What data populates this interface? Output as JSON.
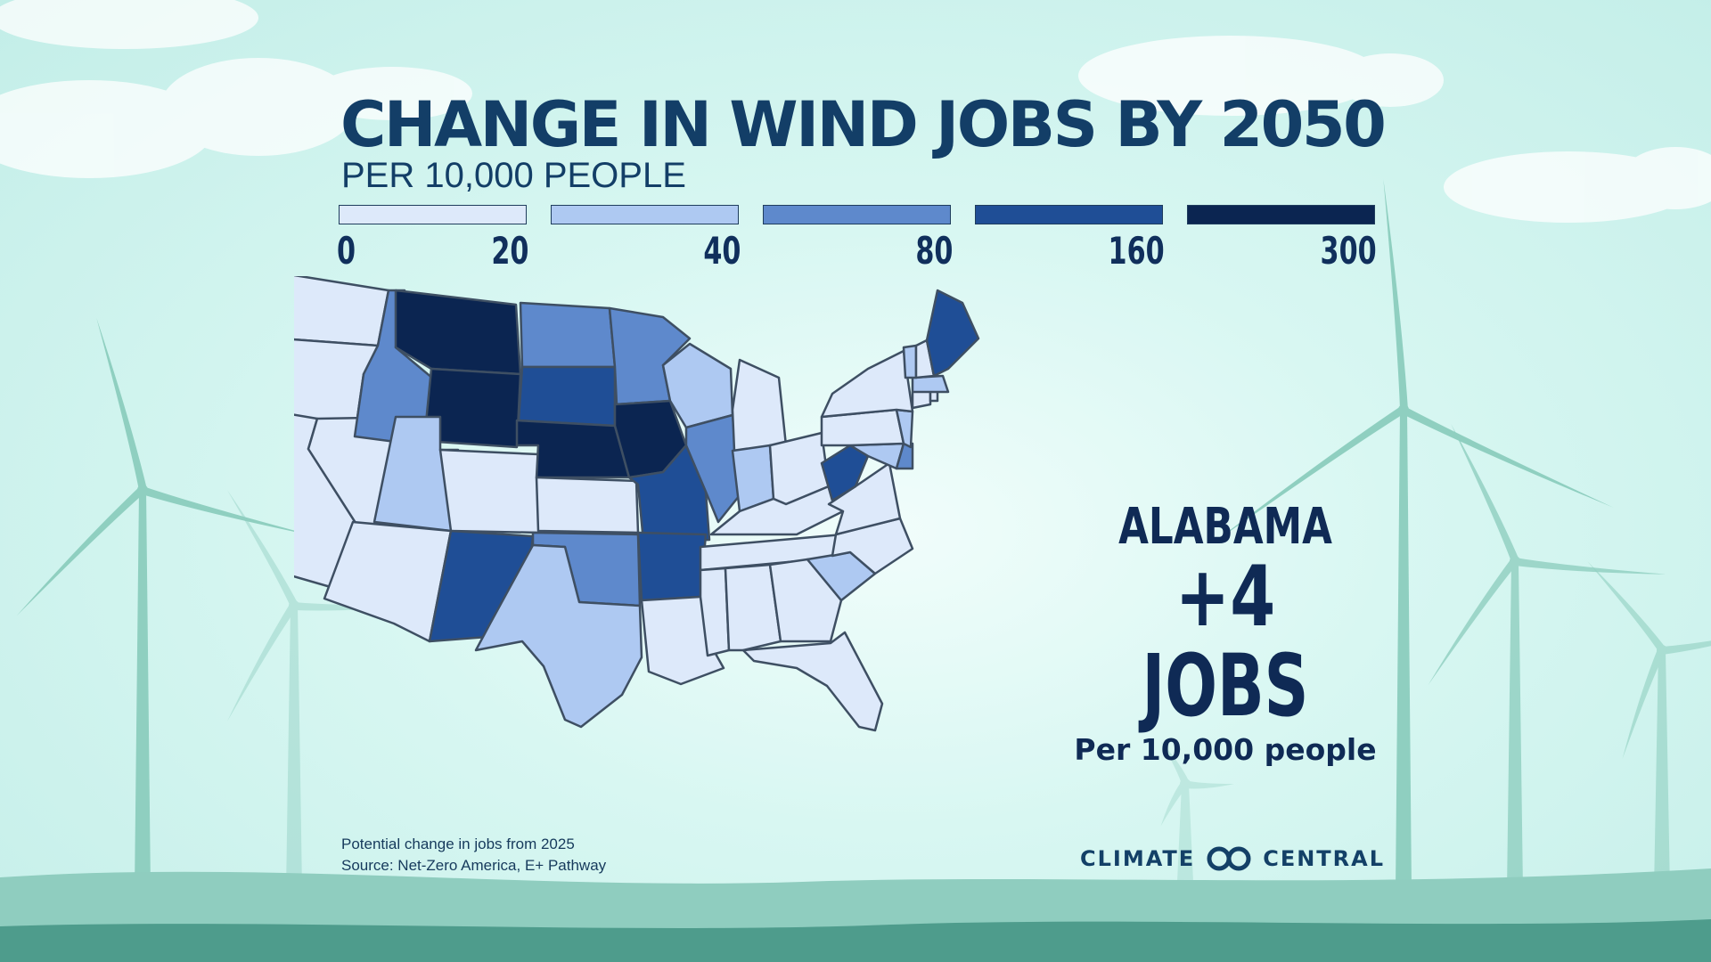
{
  "title": "CHANGE IN WIND JOBS BY 2050",
  "subtitle": "PER 10,000 PEOPLE",
  "colors": {
    "bin_0_20": "#dde9fa",
    "bin_20_40": "#aec9f2",
    "bin_40_80": "#5e89cc",
    "bin_80_160": "#1f4e96",
    "bin_160_300": "#0b2551",
    "state_border": "#3e4f63",
    "turbine": "#8fcfc0",
    "ground": "#4f9e8d"
  },
  "legend": [
    {
      "label": "0",
      "end_label": "20",
      "color": "#dde9fa"
    },
    {
      "label": "40",
      "color": "#aec9f2"
    },
    {
      "label": "80",
      "color": "#5e89cc"
    },
    {
      "label": "160",
      "color": "#1f4e96"
    },
    {
      "label": "300",
      "color": "#0b2551"
    }
  ],
  "callout": {
    "state": "ALABAMA",
    "value": "+4",
    "unit": "JOBS",
    "per": "Per 10,000 people"
  },
  "notes": {
    "line1": "Potential change in jobs from 2025",
    "line2": "Source: Net-Zero America, E+ Pathway"
  },
  "brand": {
    "left": "CLIMATE",
    "right": "CENTRAL",
    "icon": "climate-central-logo-icon"
  },
  "map": {
    "region": "United States (contiguous)",
    "states": [
      {
        "code": "WA",
        "bin": 0
      },
      {
        "code": "OR",
        "bin": 0
      },
      {
        "code": "CA",
        "bin": 0
      },
      {
        "code": "NV",
        "bin": 0
      },
      {
        "code": "ID",
        "bin": 2
      },
      {
        "code": "MT",
        "bin": 4
      },
      {
        "code": "WY",
        "bin": 4
      },
      {
        "code": "UT",
        "bin": 1
      },
      {
        "code": "AZ",
        "bin": 0
      },
      {
        "code": "CO",
        "bin": 0
      },
      {
        "code": "NM",
        "bin": 3
      },
      {
        "code": "ND",
        "bin": 2
      },
      {
        "code": "SD",
        "bin": 3
      },
      {
        "code": "NE",
        "bin": 4
      },
      {
        "code": "KS",
        "bin": 0
      },
      {
        "code": "OK",
        "bin": 2
      },
      {
        "code": "TX",
        "bin": 1
      },
      {
        "code": "MN",
        "bin": 2
      },
      {
        "code": "IA",
        "bin": 4
      },
      {
        "code": "MO",
        "bin": 3
      },
      {
        "code": "AR",
        "bin": 3
      },
      {
        "code": "LA",
        "bin": 0
      },
      {
        "code": "WI",
        "bin": 1
      },
      {
        "code": "IL",
        "bin": 2
      },
      {
        "code": "MI",
        "bin": 0
      },
      {
        "code": "IN",
        "bin": 1
      },
      {
        "code": "OH",
        "bin": 0
      },
      {
        "code": "KY",
        "bin": 0
      },
      {
        "code": "TN",
        "bin": 0
      },
      {
        "code": "MS",
        "bin": 0
      },
      {
        "code": "AL",
        "bin": 0
      },
      {
        "code": "GA",
        "bin": 0
      },
      {
        "code": "FL",
        "bin": 0
      },
      {
        "code": "SC",
        "bin": 1
      },
      {
        "code": "NC",
        "bin": 0
      },
      {
        "code": "VA",
        "bin": 0
      },
      {
        "code": "WV",
        "bin": 3
      },
      {
        "code": "MD",
        "bin": 1
      },
      {
        "code": "DE",
        "bin": 2
      },
      {
        "code": "PA",
        "bin": 0
      },
      {
        "code": "NJ",
        "bin": 1
      },
      {
        "code": "NY",
        "bin": 0
      },
      {
        "code": "CT",
        "bin": 0
      },
      {
        "code": "RI",
        "bin": 0
      },
      {
        "code": "MA",
        "bin": 1
      },
      {
        "code": "VT",
        "bin": 1
      },
      {
        "code": "NH",
        "bin": 0
      },
      {
        "code": "ME",
        "bin": 3
      }
    ]
  }
}
